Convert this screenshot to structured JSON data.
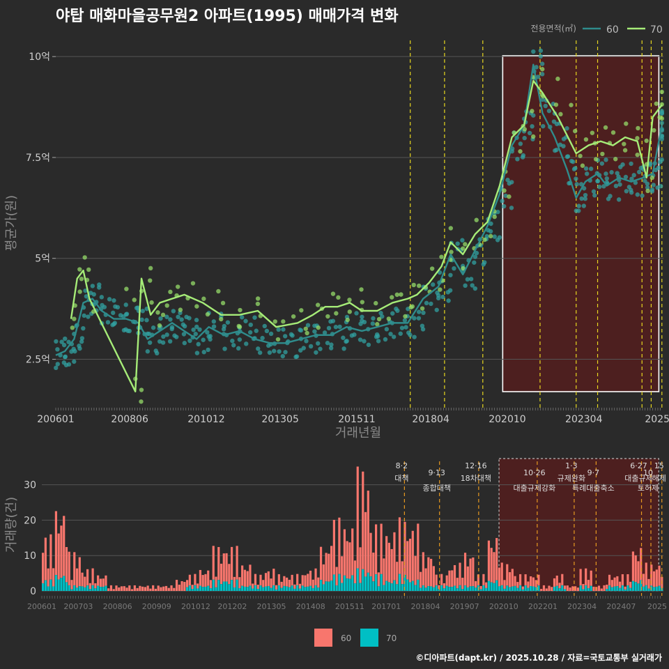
{
  "title": "야탑 매화마을공무원2 아파트(1995) 매매가격 변화",
  "credit": "©디아파트(dapt.kr) / 2025.10.28 / 자료=국토교통부 실거래가",
  "colors": {
    "background": "#2a2a2a",
    "series60_line": "#2f8c8c",
    "series60_point": "#32a0a0",
    "series70_line": "#a6ec78",
    "series70_point": "#96dc6a",
    "vol60": "#f8766d",
    "vol70": "#00bfc4",
    "policy": "#e8d820",
    "highlight_fill": "#5a1c1c",
    "grid": "#555555"
  },
  "chart_data": [
    {
      "type": "line",
      "title": "야탑 매화마을공무원2 아파트(1995) 매매가격 변화",
      "xlabel": "거래년월",
      "ylabel": "평균가(원)",
      "x_ticks": [
        "200601",
        "200806",
        "201012",
        "201305",
        "201511",
        "201804",
        "202010",
        "202304",
        "2025"
      ],
      "y_ticks": [
        {
          "value": 2.5,
          "label": "2.5억"
        },
        {
          "value": 5,
          "label": "5억"
        },
        {
          "value": 7.5,
          "label": "7.5억"
        },
        {
          "value": 10,
          "label": "10억"
        }
      ],
      "ylim": [
        1.3,
        10.4
      ],
      "legend_title": "전용면적(㎡)",
      "legend": "top-right",
      "grid": true,
      "highlight_range": [
        2020.6,
        2025.7
      ],
      "policy_dates": [
        2017.58,
        2018.7,
        2019.95,
        2021.82,
        2023.0,
        2023.7,
        2025.15,
        2025.45,
        2025.8
      ],
      "series": [
        {
          "name": "60",
          "x": [
            2006.0,
            2006.3,
            2006.6,
            2006.9,
            2007.2,
            2007.5,
            2007.9,
            2008.3,
            2008.7,
            2009.0,
            2009.4,
            2009.8,
            2010.2,
            2010.6,
            2011.0,
            2011.5,
            2012.0,
            2012.5,
            2013.0,
            2013.5,
            2014.0,
            2014.5,
            2015.0,
            2015.5,
            2016.0,
            2016.5,
            2017.0,
            2017.5,
            2018.0,
            2018.5,
            2018.9,
            2019.3,
            2019.7,
            2020.1,
            2020.5,
            2020.9,
            2021.3,
            2021.6,
            2021.9,
            2022.3,
            2022.7,
            2023.0,
            2023.3,
            2023.7,
            2024.0,
            2024.4,
            2024.8,
            2025.2,
            2025.5,
            2025.8
          ],
          "values": [
            2.6,
            2.7,
            3.0,
            3.9,
            4.0,
            3.7,
            3.5,
            3.5,
            3.4,
            3.0,
            3.2,
            3.4,
            3.2,
            3.0,
            3.3,
            3.1,
            3.2,
            3.0,
            2.9,
            2.9,
            3.0,
            3.1,
            3.1,
            3.3,
            3.2,
            3.3,
            3.4,
            3.4,
            4.0,
            4.3,
            5.1,
            4.6,
            5.2,
            5.8,
            6.6,
            7.8,
            8.3,
            9.8,
            8.6,
            8.0,
            7.2,
            6.5,
            6.9,
            7.1,
            6.8,
            7.0,
            6.9,
            7.0,
            7.1,
            8.3
          ]
        },
        {
          "name": "70",
          "x": [
            2006.5,
            2006.7,
            2006.9,
            2007.1,
            2008.6,
            2008.8,
            2009.1,
            2009.4,
            2009.8,
            2010.2,
            2010.8,
            2011.4,
            2012.0,
            2012.6,
            2013.2,
            2013.9,
            2014.4,
            2014.8,
            2015.2,
            2015.6,
            2016.0,
            2016.5,
            2017.0,
            2017.5,
            2017.8,
            2018.2,
            2018.6,
            2018.9,
            2019.3,
            2019.7,
            2020.1,
            2020.5,
            2020.9,
            2021.3,
            2021.6,
            2021.9,
            2022.4,
            2023.0,
            2023.4,
            2023.8,
            2024.2,
            2024.6,
            2025.0,
            2025.3,
            2025.5,
            2025.8
          ],
          "values": [
            3.5,
            4.5,
            4.7,
            4.0,
            1.7,
            4.5,
            3.6,
            3.9,
            4.0,
            4.1,
            3.9,
            3.6,
            3.6,
            3.7,
            3.3,
            3.4,
            3.6,
            3.8,
            3.8,
            3.9,
            3.7,
            3.7,
            3.9,
            4.0,
            4.1,
            4.4,
            4.8,
            5.4,
            5.1,
            5.6,
            5.9,
            6.8,
            8.0,
            8.3,
            9.4,
            9.1,
            8.5,
            7.6,
            7.8,
            7.9,
            7.8,
            8.0,
            7.9,
            7.0,
            8.5,
            8.8
          ]
        }
      ]
    },
    {
      "type": "bar",
      "ylabel": "거래량(건)",
      "y_ticks": [
        0,
        10,
        20,
        30
      ],
      "ylim": [
        0,
        38
      ],
      "x_ticks": [
        "200601",
        "200703",
        "200806",
        "200909",
        "201012",
        "201202",
        "201305",
        "201408",
        "201511",
        "201701",
        "201804",
        "201907",
        "202010",
        "202201",
        "202304",
        "202407",
        "2025"
      ],
      "legend": [
        "60",
        "70"
      ],
      "legend_position": "bottom",
      "highlight_range": [
        2020.6,
        2025.7
      ],
      "stack_60": [
        8,
        12,
        6,
        3,
        2,
        1,
        1,
        1,
        1,
        1,
        2,
        2,
        3,
        6,
        6,
        4,
        2,
        3,
        2,
        2,
        3,
        6,
        10,
        9,
        18,
        9,
        9,
        10,
        10,
        6,
        2,
        4,
        6,
        2,
        8,
        4,
        2,
        2,
        1,
        2,
        1,
        3,
        1,
        2,
        2,
        6,
        4
      ],
      "stack_70": [
        2,
        3,
        1,
        1,
        1,
        0,
        0,
        0,
        0,
        0,
        0,
        1,
        1,
        2,
        2,
        1,
        1,
        1,
        1,
        1,
        1,
        2,
        3,
        3,
        4,
        3,
        2,
        3,
        2,
        1,
        1,
        1,
        1,
        1,
        2,
        1,
        1,
        1,
        0,
        1,
        0,
        1,
        0,
        1,
        1,
        2,
        1
      ],
      "policies": [
        {
          "x": 2017.58,
          "date": "8·2",
          "name": "대책"
        },
        {
          "x": 2018.7,
          "date": "9·13",
          "name": "종합대책"
        },
        {
          "x": 2019.95,
          "date": "12·16",
          "name": "18차대책"
        },
        {
          "x": 2021.82,
          "date": "10·26",
          "name": "대출규제강화"
        },
        {
          "x": 2023.0,
          "date": "1·3",
          "name": "규제완화"
        },
        {
          "x": 2023.7,
          "date": "9·7",
          "name": "특례대출축소"
        },
        {
          "x": 2025.15,
          "date": "6·27",
          "name": "대출규제"
        },
        {
          "x": 2025.45,
          "date": "10",
          "name": "토허제"
        },
        {
          "x": 2025.8,
          "date": "15",
          "name": "해제"
        }
      ]
    }
  ]
}
